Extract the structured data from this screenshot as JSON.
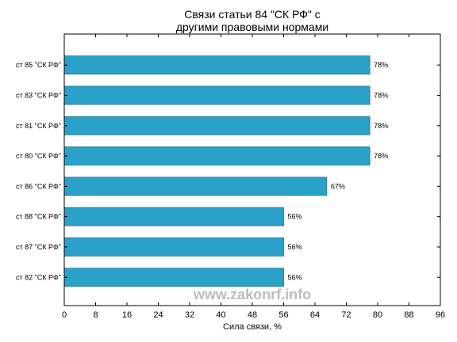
{
  "chart_data": {
    "type": "bar",
    "orientation": "horizontal",
    "title": "Связи статьи 84 \"СК РФ\" с\nдругими правовыми нормами",
    "xlabel": "Сила связи, %",
    "ylabel": "",
    "categories": [
      "ст 85 \"СК РФ\"",
      "ст 83 \"СК РФ\"",
      "ст 81 \"СК РФ\"",
      "ст 80 \"СК РФ\"",
      "ст 86 \"СК РФ\"",
      "ст 88 \"СК РФ\"",
      "ст 87 \"СК РФ\"",
      "ст 82 \"СК РФ\""
    ],
    "values": [
      78,
      78,
      78,
      78,
      67,
      56,
      56,
      56
    ],
    "value_labels": [
      "78%",
      "78%",
      "78%",
      "78%",
      "67%",
      "56%",
      "56%",
      "56%"
    ],
    "xlim": [
      0,
      96
    ],
    "xticks": [
      0,
      8,
      16,
      24,
      32,
      40,
      48,
      56,
      64,
      72,
      80,
      88,
      96
    ],
    "grid": false,
    "legend": "none",
    "bar_color": "#2aa1c9",
    "bar_edge_color": "#1f6f8b"
  },
  "watermark": "www.zakonrf.info"
}
